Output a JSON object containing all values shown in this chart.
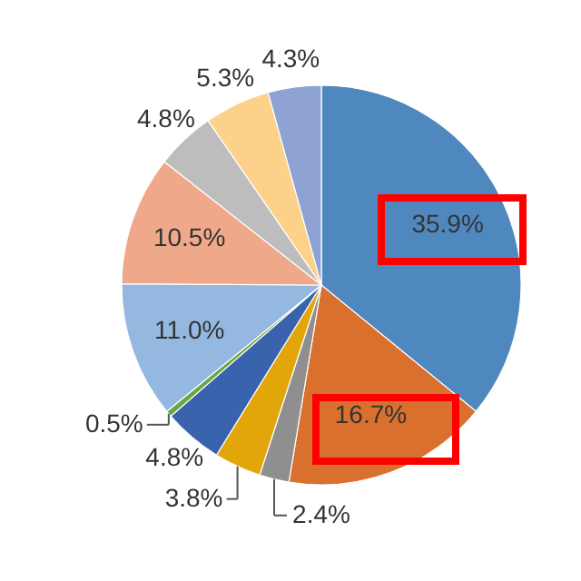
{
  "chart_data": {
    "type": "pie",
    "categories": [
      null,
      null,
      null,
      null,
      null,
      null,
      null,
      null,
      null,
      null,
      null
    ],
    "values": [
      35.9,
      16.7,
      2.4,
      3.8,
      4.8,
      0.5,
      11.0,
      10.5,
      4.8,
      5.3,
      4.3
    ],
    "value_labels": [
      "35.9%",
      "16.7%",
      "2.4%",
      "3.8%",
      "4.8%",
      "0.5%",
      "11.0%",
      "10.5%",
      "4.8%",
      "5.3%",
      "4.3%"
    ],
    "colors": [
      "#4f88bf",
      "#d9702e",
      "#8f8f8f",
      "#e2a60a",
      "#3a63ad",
      "#6aa644",
      "#95b8e0",
      "#f0a88a",
      "#bdbdbd",
      "#fed18a",
      "#8fa2d4"
    ]
  }
}
